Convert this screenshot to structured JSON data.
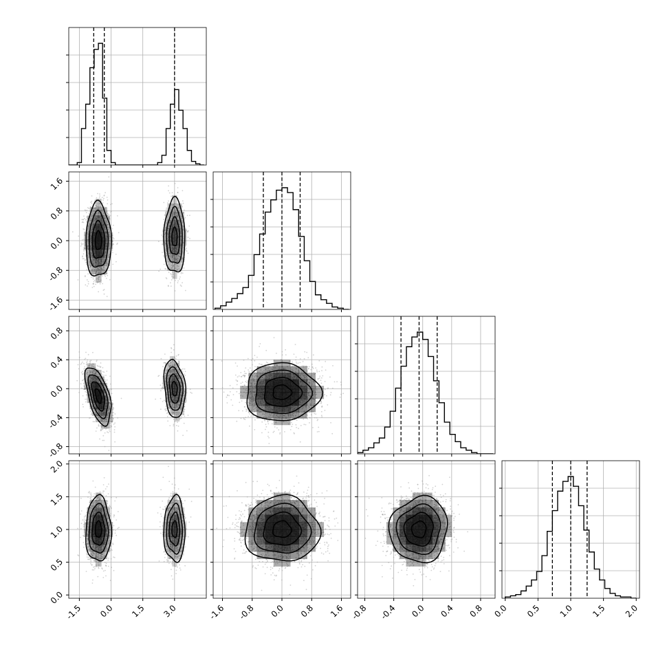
{
  "chart_data": {
    "type": "corner",
    "title": "",
    "parameters": [
      {
        "name": "p0",
        "label": "",
        "range": [
          -2.0,
          4.5
        ],
        "ticks": [
          "-1.5",
          "0.0",
          "1.5",
          "3.0"
        ],
        "tick_values": [
          -1.5,
          0.0,
          1.5,
          3.0
        ],
        "quantiles": [
          -0.82,
          -0.32,
          3.0
        ]
      },
      {
        "name": "p1",
        "label": "",
        "range": [
          -1.85,
          1.85
        ],
        "ticks": [
          "-1.6",
          "-0.8",
          "0.0",
          "0.8",
          "1.6"
        ],
        "tick_values": [
          -1.6,
          -0.8,
          0.0,
          0.8,
          1.6
        ],
        "quantiles": [
          -0.5,
          0.0,
          0.49
        ]
      },
      {
        "name": "p2",
        "label": "",
        "range": [
          -0.9,
          1.0
        ],
        "ticks": [
          "-0.8",
          "-0.4",
          "0.0",
          "0.4",
          "0.8"
        ],
        "tick_values": [
          -0.8,
          -0.4,
          0.0,
          0.4,
          0.8
        ],
        "quantiles": [
          -0.3,
          -0.05,
          0.2
        ]
      },
      {
        "name": "p3",
        "label": "",
        "range": [
          -0.05,
          2.05
        ],
        "ticks": [
          "0.0",
          "0.5",
          "1.0",
          "1.5",
          "2.0"
        ],
        "tick_values": [
          0.0,
          0.5,
          1.0,
          1.5,
          2.0
        ],
        "quantiles": [
          0.72,
          1.0,
          1.25
        ]
      }
    ],
    "histograms": [
      {
        "parameter": "p0",
        "bin_edges": [
          -2.0,
          -1.8,
          -1.6,
          -1.4,
          -1.2,
          -1.0,
          -0.8,
          -0.6,
          -0.4,
          -0.2,
          0.0,
          0.2,
          0.4,
          0.6,
          0.8,
          1.0,
          1.2,
          1.4,
          1.6,
          1.8,
          2.0,
          2.2,
          2.4,
          2.6,
          2.8,
          3.0,
          3.2,
          3.4,
          3.6,
          3.8,
          4.0,
          4.2,
          4.4
        ],
        "counts": [
          0,
          0,
          2,
          30,
          50,
          80,
          95,
          100,
          55,
          12,
          2,
          0,
          0,
          0,
          0,
          0,
          0,
          0,
          0,
          0,
          0,
          2,
          8,
          30,
          50,
          62,
          45,
          30,
          12,
          3,
          1,
          0
        ]
      },
      {
        "parameter": "p1",
        "bin_edges": [
          -1.8,
          -1.65,
          -1.5,
          -1.35,
          -1.2,
          -1.05,
          -0.9,
          -0.75,
          -0.6,
          -0.45,
          -0.3,
          -0.15,
          0.0,
          0.15,
          0.3,
          0.45,
          0.6,
          0.75,
          0.9,
          1.05,
          1.2,
          1.35,
          1.5,
          1.65,
          1.8
        ],
        "counts": [
          1,
          3,
          6,
          9,
          13,
          18,
          28,
          45,
          62,
          80,
          90,
          98,
          100,
          96,
          82,
          60,
          40,
          23,
          12,
          8,
          5,
          2,
          1,
          0
        ]
      },
      {
        "parameter": "p2",
        "bin_edges": [
          -0.9,
          -0.825,
          -0.75,
          -0.675,
          -0.6,
          -0.525,
          -0.45,
          -0.375,
          -0.3,
          -0.225,
          -0.15,
          -0.075,
          0.0,
          0.075,
          0.15,
          0.225,
          0.3,
          0.375,
          0.45,
          0.525,
          0.6,
          0.675,
          0.75,
          0.825,
          0.9,
          0.975
        ],
        "counts": [
          1,
          3,
          5,
          9,
          13,
          22,
          35,
          54,
          72,
          88,
          96,
          100,
          94,
          80,
          60,
          42,
          26,
          16,
          10,
          5,
          3,
          1,
          0,
          0,
          0
        ]
      },
      {
        "parameter": "p3",
        "bin_edges": [
          0.0,
          0.08,
          0.16,
          0.24,
          0.32,
          0.4,
          0.48,
          0.56,
          0.64,
          0.72,
          0.8,
          0.88,
          0.96,
          1.04,
          1.12,
          1.2,
          1.28,
          1.36,
          1.44,
          1.52,
          1.6,
          1.68,
          1.76,
          1.84,
          1.92,
          2.0
        ],
        "counts": [
          1,
          2,
          3,
          6,
          10,
          15,
          22,
          35,
          55,
          72,
          88,
          96,
          100,
          92,
          76,
          56,
          38,
          24,
          15,
          8,
          4,
          2,
          1,
          1,
          0
        ]
      }
    ],
    "joint_clusters": {
      "p1_vs_p0": [
        {
          "center": [
            -0.6,
            0.0
          ],
          "sigma": [
            0.3,
            0.5
          ],
          "rho": 0.0,
          "weight": 0.65
        },
        {
          "center": [
            3.0,
            0.1
          ],
          "sigma": [
            0.25,
            0.5
          ],
          "rho": 0.0,
          "weight": 0.35
        }
      ],
      "p2_vs_p0": [
        {
          "center": [
            -0.6,
            -0.1
          ],
          "sigma": [
            0.3,
            0.2
          ],
          "rho": -0.55,
          "weight": 0.65
        },
        {
          "center": [
            3.0,
            0.0
          ],
          "sigma": [
            0.25,
            0.2
          ],
          "rho": -0.2,
          "weight": 0.35
        }
      ],
      "p2_vs_p1": [
        {
          "center": [
            0.0,
            -0.05
          ],
          "sigma": [
            0.5,
            0.2
          ],
          "rho": 0.0,
          "weight": 1.0
        }
      ],
      "p3_vs_p0": [
        {
          "center": [
            -0.6,
            1.0
          ],
          "sigma": [
            0.3,
            0.25
          ],
          "rho": 0.0,
          "weight": 0.65
        },
        {
          "center": [
            3.0,
            1.0
          ],
          "sigma": [
            0.25,
            0.25
          ],
          "rho": 0.0,
          "weight": 0.35
        }
      ],
      "p3_vs_p1": [
        {
          "center": [
            0.0,
            1.0
          ],
          "sigma": [
            0.5,
            0.25
          ],
          "rho": 0.0,
          "weight": 1.0
        }
      ],
      "p3_vs_p2": [
        {
          "center": [
            -0.05,
            1.0
          ],
          "sigma": [
            0.2,
            0.25
          ],
          "rho": 0.05,
          "weight": 1.0
        }
      ]
    },
    "contour_levels_sigma": [
      0.5,
      1.0,
      1.5,
      2.0
    ],
    "grid": true,
    "colors": {
      "line": "#000000",
      "grid": "#b0b0b0",
      "scatter": "#9a9a9a",
      "density": "#000000"
    }
  }
}
